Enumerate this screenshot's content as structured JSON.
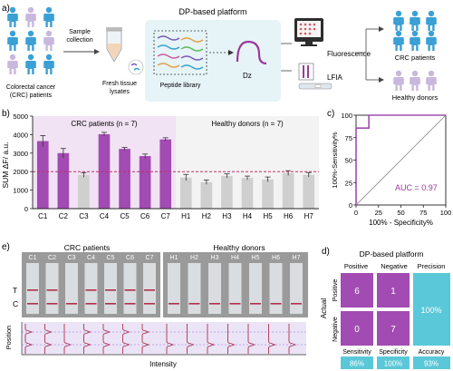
{
  "colors": {
    "purple": "#a24bb2",
    "purple_light": "#d8b6de",
    "teal": "#3aa0c8",
    "teal_light": "#5ac8d8",
    "grey_bar": "#cfcfcf",
    "pink_band": "#f1e2f4",
    "grey_band": "#f3f3f3",
    "dashed_red": "#c0306a"
  },
  "panel_a": {
    "label": "a)",
    "patients_caption_line1": "Colorectal cancer",
    "patients_caption_line2": "(CRC) patients",
    "sample_line1": "Sample",
    "sample_line2": "collection",
    "lysate_line1": "Fresh tissue",
    "lysate_line2": "lysates",
    "platform_title": "DP-based platform",
    "library_label": "Peptide library",
    "dz_label": "Dz",
    "fluorescence_label": "Fluorescence",
    "lfia_label": "LFIA",
    "out_crc": "CRC patients",
    "out_healthy": "Healthy donors"
  },
  "panel_b": {
    "label": "b)",
    "group_crc": "CRC patients (n = 7)",
    "group_healthy": "Healthy donors (n = 7)",
    "chart_data": {
      "type": "bar",
      "categories": [
        "C1",
        "C2",
        "C3",
        "C4",
        "C5",
        "C6",
        "C7",
        "H1",
        "H2",
        "H3",
        "H4",
        "H5",
        "H6",
        "H7"
      ],
      "values": [
        3650,
        3000,
        1820,
        4020,
        3230,
        2840,
        3740,
        1680,
        1430,
        1770,
        1660,
        1580,
        1920,
        1830
      ],
      "errors": [
        300,
        250,
        120,
        100,
        80,
        110,
        90,
        170,
        120,
        110,
        100,
        130,
        130,
        120
      ],
      "highlight": [
        true,
        true,
        false,
        true,
        true,
        true,
        true,
        false,
        false,
        false,
        false,
        false,
        false,
        false
      ],
      "threshold": 2000,
      "ylabel": "SUM ΔF/ a.u.",
      "ylim": [
        0,
        5000
      ],
      "yticks": [
        "0",
        "1000",
        "2000",
        "3000",
        "4000",
        "5000"
      ]
    }
  },
  "panel_c": {
    "label": "c)",
    "chart_data": {
      "type": "line",
      "xlabel": "100% - Specificity%",
      "ylabel": "100%-Sensitivity%",
      "xlim": [
        0,
        100
      ],
      "ylim": [
        0,
        100
      ],
      "xticks": [
        "0",
        "25",
        "50",
        "75",
        "100"
      ],
      "yticks": [
        "0",
        "25",
        "50",
        "75",
        "100"
      ],
      "roc_x": [
        0,
        0,
        14.3,
        14.3,
        100
      ],
      "roc_y": [
        0,
        85.7,
        85.7,
        100,
        100
      ],
      "auc_label": "AUC = 0.97"
    }
  },
  "panel_e": {
    "label": "e)",
    "group_crc": "CRC patients",
    "group_healthy": "Healthy donors",
    "strips": [
      "C1",
      "C2",
      "C3",
      "C4",
      "C5",
      "C6",
      "C7",
      "H1",
      "H2",
      "H3",
      "H4",
      "H5",
      "H6",
      "H7"
    ],
    "t_label": "T",
    "c_label": "C",
    "t_line_visible": [
      true,
      true,
      false,
      true,
      true,
      true,
      true,
      false,
      false,
      false,
      false,
      false,
      false,
      false
    ],
    "position_label": "Position",
    "intensity_label": "Intensity"
  },
  "panel_d": {
    "label": "d)",
    "title": "DP-based platform",
    "col_positive": "Positive",
    "col_negative": "Negative",
    "col_precision": "Precision",
    "actual_label": "Actual",
    "row_positive": "Positive",
    "row_negative": "Negative",
    "tp": "6",
    "fn": "1",
    "fp": "0",
    "tn": "7",
    "precision": "100%",
    "sensitivity_label": "Sensitivity",
    "specificity_label": "Specificity",
    "accuracy_label": "Accuracy",
    "sensitivity": "86%",
    "specificity": "100%",
    "accuracy": "93%"
  }
}
